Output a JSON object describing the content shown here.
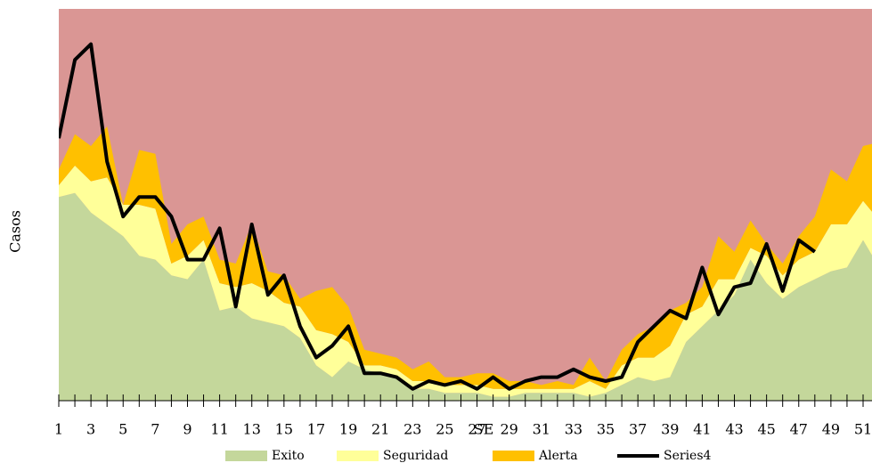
{
  "chart_data": {
    "type": "stacked_area_line",
    "y_label": "Casos",
    "x_label": "SE",
    "plot_color": "#da9694",
    "categories": [
      1,
      null,
      3,
      null,
      5,
      null,
      7,
      null,
      9,
      null,
      11,
      null,
      13,
      null,
      15,
      null,
      17,
      null,
      19,
      null,
      21,
      null,
      23,
      null,
      25,
      null,
      27,
      null,
      29,
      null,
      31,
      null,
      33,
      null,
      35,
      null,
      37,
      null,
      39,
      null,
      41,
      null,
      43,
      null,
      45,
      null,
      47,
      null,
      49,
      null,
      51,
      null
    ],
    "ylim": [
      0,
      100
    ],
    "series": [
      {
        "name": "Exito",
        "kind": "area",
        "color": "#c4d79b",
        "values": [
          52,
          53,
          48,
          45,
          42,
          37,
          36,
          32,
          31,
          36,
          23,
          24,
          21,
          20,
          19,
          16,
          9,
          6,
          10,
          8,
          7,
          6,
          3,
          3,
          2,
          2,
          2,
          1,
          1,
          2,
          2,
          2,
          2,
          1,
          2,
          4,
          6,
          5,
          6,
          15,
          19,
          23,
          27,
          36,
          30,
          26,
          29,
          31,
          33,
          34,
          41,
          34
        ]
      },
      {
        "name": "Seguridad",
        "kind": "area",
        "color": "#ffff99",
        "values": [
          3,
          7,
          8,
          12,
          8,
          13,
          13,
          3,
          6,
          5,
          7,
          5,
          9,
          8,
          6,
          8,
          9,
          11,
          5,
          1,
          2,
          2,
          2,
          2,
          2,
          2,
          2,
          2,
          2,
          1,
          1,
          1,
          1,
          4,
          1,
          5,
          5,
          6,
          8,
          7,
          5,
          8,
          4,
          3,
          7,
          6,
          7,
          7,
          12,
          11,
          10,
          12
        ]
      },
      {
        "name": "Alerta",
        "kind": "area",
        "color": "#ffc000",
        "values": [
          4,
          8,
          9,
          13,
          0,
          14,
          14,
          5,
          8,
          6,
          6,
          6,
          15,
          5,
          7,
          2,
          10,
          12,
          9,
          4,
          3,
          3,
          3,
          5,
          2,
          2,
          3,
          4,
          2,
          2,
          1,
          2,
          1,
          6,
          2,
          4,
          6,
          8,
          9,
          3,
          5,
          11,
          7,
          7,
          3,
          3,
          6,
          9,
          14,
          11,
          14,
          20
        ]
      },
      {
        "name": "Series4",
        "kind": "line",
        "color": "#000000",
        "values": [
          67,
          87,
          91,
          61,
          47,
          52,
          52,
          47,
          36,
          36,
          44,
          24,
          45,
          27,
          32,
          19,
          11,
          14,
          19,
          7,
          7,
          6,
          3,
          5,
          4,
          5,
          3,
          6,
          3,
          5,
          6,
          6,
          8,
          6,
          5,
          6,
          15,
          19,
          23,
          21,
          34,
          22,
          29,
          30,
          40,
          28,
          41,
          38,
          null,
          null,
          null,
          null
        ]
      }
    ]
  }
}
